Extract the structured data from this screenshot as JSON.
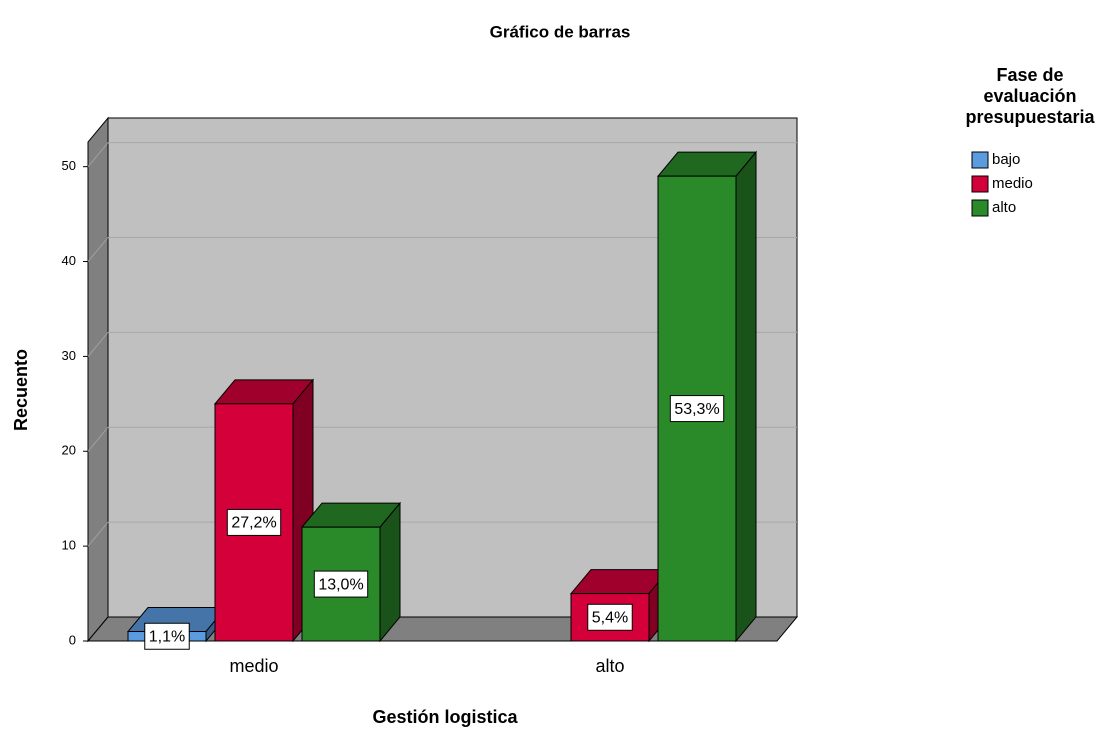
{
  "chart_data": {
    "type": "bar3d",
    "title": "Gráfico de barras",
    "x_label": "Gestión logistica",
    "y_label": "Recuento",
    "legend_title": [
      "Fase de",
      "evaluación",
      "presupuestaria"
    ],
    "categories": [
      "medio",
      "alto"
    ],
    "series": [
      {
        "name": "bajo",
        "color": "#5b9be0",
        "values": [
          1,
          null
        ],
        "value_labels": [
          "1,1%",
          null
        ]
      },
      {
        "name": "medio",
        "color": "#d4003a",
        "values": [
          25,
          5
        ],
        "value_labels": [
          "27,2%",
          "5,4%"
        ]
      },
      {
        "name": "alto",
        "color": "#2a8a2a",
        "values": [
          12,
          49
        ],
        "value_labels": [
          "13,0%",
          "53,3%"
        ]
      }
    ],
    "ylim": [
      0,
      52.6
    ],
    "yticks": [
      0,
      10,
      20,
      30,
      40,
      50
    ],
    "grid": true,
    "legend": "right"
  }
}
